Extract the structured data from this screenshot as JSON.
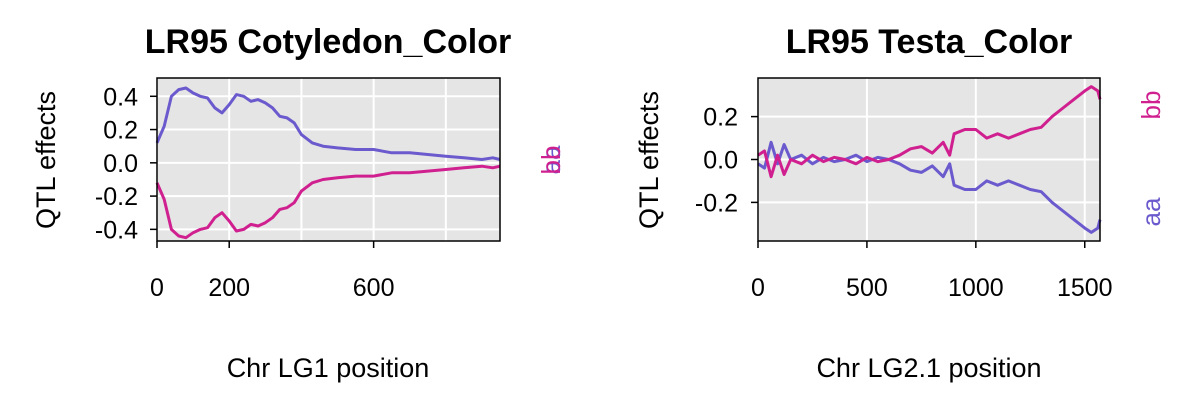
{
  "chart_data": [
    {
      "type": "line",
      "title": "LR95 Cotyledon_Color",
      "xlabel": "Chr LG1 position",
      "ylabel": "QTL effects",
      "xlim": [
        0,
        950
      ],
      "ylim": [
        -0.47,
        0.51
      ],
      "x_ticks": [
        0,
        200,
        600
      ],
      "y_ticks": [
        -0.4,
        -0.2,
        0.0,
        0.2,
        0.4
      ],
      "x_tick_labels": [
        "0",
        "200",
        "600"
      ],
      "y_tick_labels": [
        "-0.4",
        "-0.2",
        "0.0",
        "0.2",
        "0.4"
      ],
      "x_grid": [
        0,
        200,
        400,
        600,
        800
      ],
      "y_grid": [
        -0.4,
        -0.2,
        0.0,
        0.2,
        0.4
      ],
      "grid": true,
      "background": "#e5e5e5",
      "legend_position": "right",
      "series": [
        {
          "name": "aa",
          "color": "#6a5acd",
          "x": [
            0,
            20,
            40,
            60,
            80,
            100,
            120,
            140,
            160,
            180,
            200,
            220,
            240,
            260,
            280,
            300,
            320,
            340,
            360,
            380,
            400,
            430,
            460,
            500,
            550,
            600,
            650,
            700,
            750,
            800,
            850,
            900,
            930,
            950
          ],
          "values": [
            0.12,
            0.22,
            0.4,
            0.44,
            0.45,
            0.42,
            0.4,
            0.39,
            0.33,
            0.3,
            0.35,
            0.41,
            0.4,
            0.37,
            0.38,
            0.36,
            0.33,
            0.28,
            0.27,
            0.24,
            0.17,
            0.12,
            0.1,
            0.09,
            0.08,
            0.08,
            0.06,
            0.06,
            0.05,
            0.04,
            0.03,
            0.02,
            0.03,
            0.02
          ]
        },
        {
          "name": "bb",
          "color": "#d02090",
          "x": [
            0,
            20,
            40,
            60,
            80,
            100,
            120,
            140,
            160,
            180,
            200,
            220,
            240,
            260,
            280,
            300,
            320,
            340,
            360,
            380,
            400,
            430,
            460,
            500,
            550,
            600,
            650,
            700,
            750,
            800,
            850,
            900,
            930,
            950
          ],
          "values": [
            -0.12,
            -0.22,
            -0.4,
            -0.44,
            -0.45,
            -0.42,
            -0.4,
            -0.39,
            -0.33,
            -0.3,
            -0.35,
            -0.41,
            -0.4,
            -0.37,
            -0.38,
            -0.36,
            -0.33,
            -0.28,
            -0.27,
            -0.24,
            -0.17,
            -0.12,
            -0.1,
            -0.09,
            -0.08,
            -0.08,
            -0.06,
            -0.06,
            -0.05,
            -0.04,
            -0.03,
            -0.02,
            -0.03,
            -0.02
          ]
        }
      ]
    },
    {
      "type": "line",
      "title": "LR95 Testa_Color",
      "xlabel": "Chr LG2.1 position",
      "ylabel": "QTL effects",
      "xlim": [
        0,
        1570
      ],
      "ylim": [
        -0.38,
        0.38
      ],
      "x_ticks": [
        0,
        500,
        1000,
        1500
      ],
      "y_ticks": [
        -0.2,
        0.0,
        0.2
      ],
      "x_tick_labels": [
        "0",
        "500",
        "1000",
        "1500"
      ],
      "y_tick_labels": [
        "-0.2",
        "0.0",
        "0.2"
      ],
      "x_grid": [
        0,
        500,
        1000,
        1500
      ],
      "y_grid": [
        -0.2,
        0.0,
        0.2
      ],
      "grid": true,
      "background": "#e5e5e5",
      "legend_position": "right",
      "series": [
        {
          "name": "aa",
          "color": "#6a5acd",
          "x": [
            0,
            30,
            60,
            90,
            120,
            150,
            200,
            250,
            300,
            350,
            400,
            450,
            500,
            550,
            600,
            650,
            700,
            750,
            800,
            850,
            880,
            900,
            950,
            1000,
            1050,
            1100,
            1150,
            1200,
            1250,
            1300,
            1350,
            1400,
            1450,
            1500,
            1530,
            1560,
            1570
          ],
          "values": [
            -0.02,
            -0.04,
            0.08,
            -0.02,
            0.07,
            0.0,
            0.02,
            -0.02,
            0.01,
            -0.01,
            0.0,
            0.02,
            -0.01,
            0.01,
            0.0,
            -0.02,
            -0.05,
            -0.06,
            -0.03,
            -0.08,
            -0.02,
            -0.12,
            -0.14,
            -0.14,
            -0.1,
            -0.12,
            -0.1,
            -0.12,
            -0.14,
            -0.15,
            -0.2,
            -0.24,
            -0.28,
            -0.32,
            -0.34,
            -0.32,
            -0.28
          ]
        },
        {
          "name": "bb",
          "color": "#d02090",
          "x": [
            0,
            30,
            60,
            90,
            120,
            150,
            200,
            250,
            300,
            350,
            400,
            450,
            500,
            550,
            600,
            650,
            700,
            750,
            800,
            850,
            880,
            900,
            950,
            1000,
            1050,
            1100,
            1150,
            1200,
            1250,
            1300,
            1350,
            1400,
            1450,
            1500,
            1530,
            1560,
            1570
          ],
          "values": [
            0.02,
            0.04,
            -0.08,
            0.02,
            -0.07,
            0.0,
            -0.02,
            0.02,
            -0.01,
            0.01,
            0.0,
            -0.02,
            0.01,
            -0.01,
            0.0,
            0.02,
            0.05,
            0.06,
            0.03,
            0.08,
            0.02,
            0.12,
            0.14,
            0.14,
            0.1,
            0.12,
            0.1,
            0.12,
            0.14,
            0.15,
            0.2,
            0.24,
            0.28,
            0.32,
            0.34,
            0.32,
            0.28
          ]
        }
      ]
    }
  ]
}
